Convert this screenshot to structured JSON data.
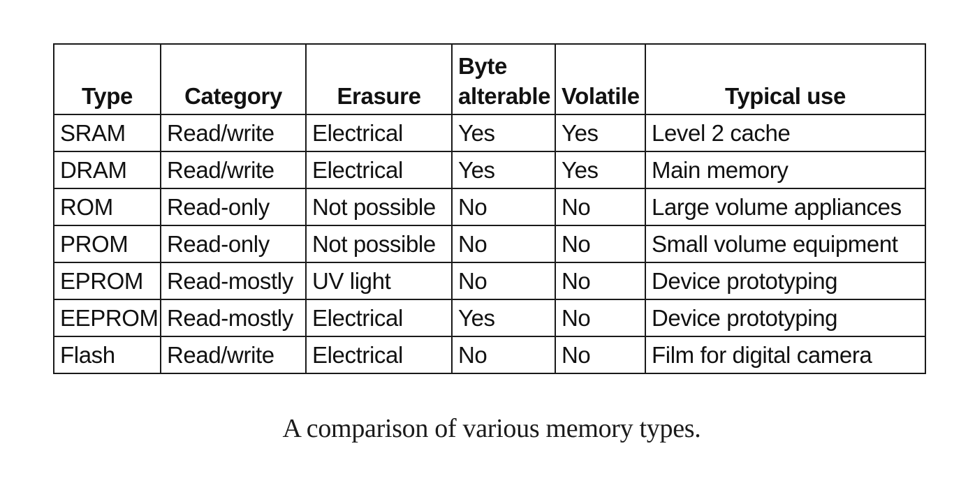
{
  "table": {
    "headers": [
      "Type",
      "Category",
      "Erasure",
      "Byte alterable",
      "Volatile",
      "Typical use"
    ],
    "rows": [
      [
        "SRAM",
        "Read/write",
        "Electrical",
        "Yes",
        "Yes",
        "Level 2 cache"
      ],
      [
        "DRAM",
        "Read/write",
        "Electrical",
        "Yes",
        "Yes",
        "Main memory"
      ],
      [
        "ROM",
        "Read-only",
        "Not possible",
        "No",
        "No",
        "Large volume appliances"
      ],
      [
        "PROM",
        "Read-only",
        "Not possible",
        "No",
        "No",
        "Small volume equipment"
      ],
      [
        "EPROM",
        "Read-mostly",
        "UV light",
        "No",
        "No",
        "Device prototyping"
      ],
      [
        "EEPROM",
        "Read-mostly",
        "Electrical",
        "Yes",
        "No",
        "Device prototyping"
      ],
      [
        "Flash",
        "Read/write",
        "Electrical",
        "No",
        "No",
        "Film for digital camera"
      ]
    ]
  },
  "caption": "A comparison of various memory types."
}
